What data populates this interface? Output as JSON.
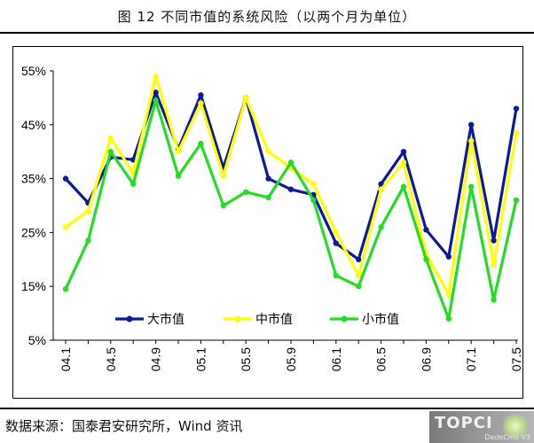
{
  "header": {
    "title": "图 12  不同市值的系统风险（以两个月为单位）"
  },
  "footer": {
    "source": "数据来源：国泰君安研究所，Wind 资讯"
  },
  "watermark": {
    "text": "TOPCI",
    "sub": "DedeCms V3"
  },
  "colors": {
    "large": "#0b1a9c",
    "mid": "#ffff00",
    "small": "#22dd22",
    "axis": "#000000"
  },
  "chart_data": {
    "type": "line",
    "title": "",
    "xlabel": "",
    "ylabel": "",
    "ylim": [
      5,
      55
    ],
    "yticks": [
      5,
      15,
      25,
      35,
      45,
      55
    ],
    "ytick_labels": [
      "5%",
      "15%",
      "25%",
      "35%",
      "45%",
      "55%"
    ],
    "x_tick_labels": [
      "04.1",
      "04.5",
      "04.9",
      "05.1",
      "05.5",
      "05.9",
      "06.1",
      "06.5",
      "06.9",
      "07.1",
      "07.5"
    ],
    "x": [
      "04.1",
      "04.3",
      "04.5",
      "04.7",
      "04.9",
      "04.11",
      "05.1",
      "05.3",
      "05.5",
      "05.7",
      "05.9",
      "05.11",
      "06.1",
      "06.3",
      "06.5",
      "06.7",
      "06.9",
      "06.11",
      "07.1",
      "07.3",
      "07.5"
    ],
    "legend_position": "bottom-inside",
    "series": [
      {
        "name": "大市值",
        "color": "#0b1a9c",
        "values": [
          35,
          30.5,
          39,
          38.5,
          51,
          40.5,
          50.5,
          37,
          50,
          35,
          33,
          32,
          23,
          20,
          34,
          40,
          25.5,
          20.5,
          45,
          23.5,
          48
        ]
      },
      {
        "name": "中市值",
        "color": "#ffff00",
        "values": [
          26,
          29,
          42.5,
          36,
          54,
          40,
          49,
          35.5,
          50,
          40,
          37,
          34,
          25,
          17,
          33,
          38,
          21,
          13.5,
          42,
          19,
          43.5
        ]
      },
      {
        "name": "小市值",
        "color": "#22dd22",
        "values": [
          14.5,
          23.5,
          40,
          34,
          49.5,
          35.5,
          41.5,
          30,
          32.5,
          31.5,
          38,
          31,
          17,
          15,
          26,
          33.5,
          20,
          9,
          33.5,
          12.5,
          31
        ]
      }
    ]
  }
}
